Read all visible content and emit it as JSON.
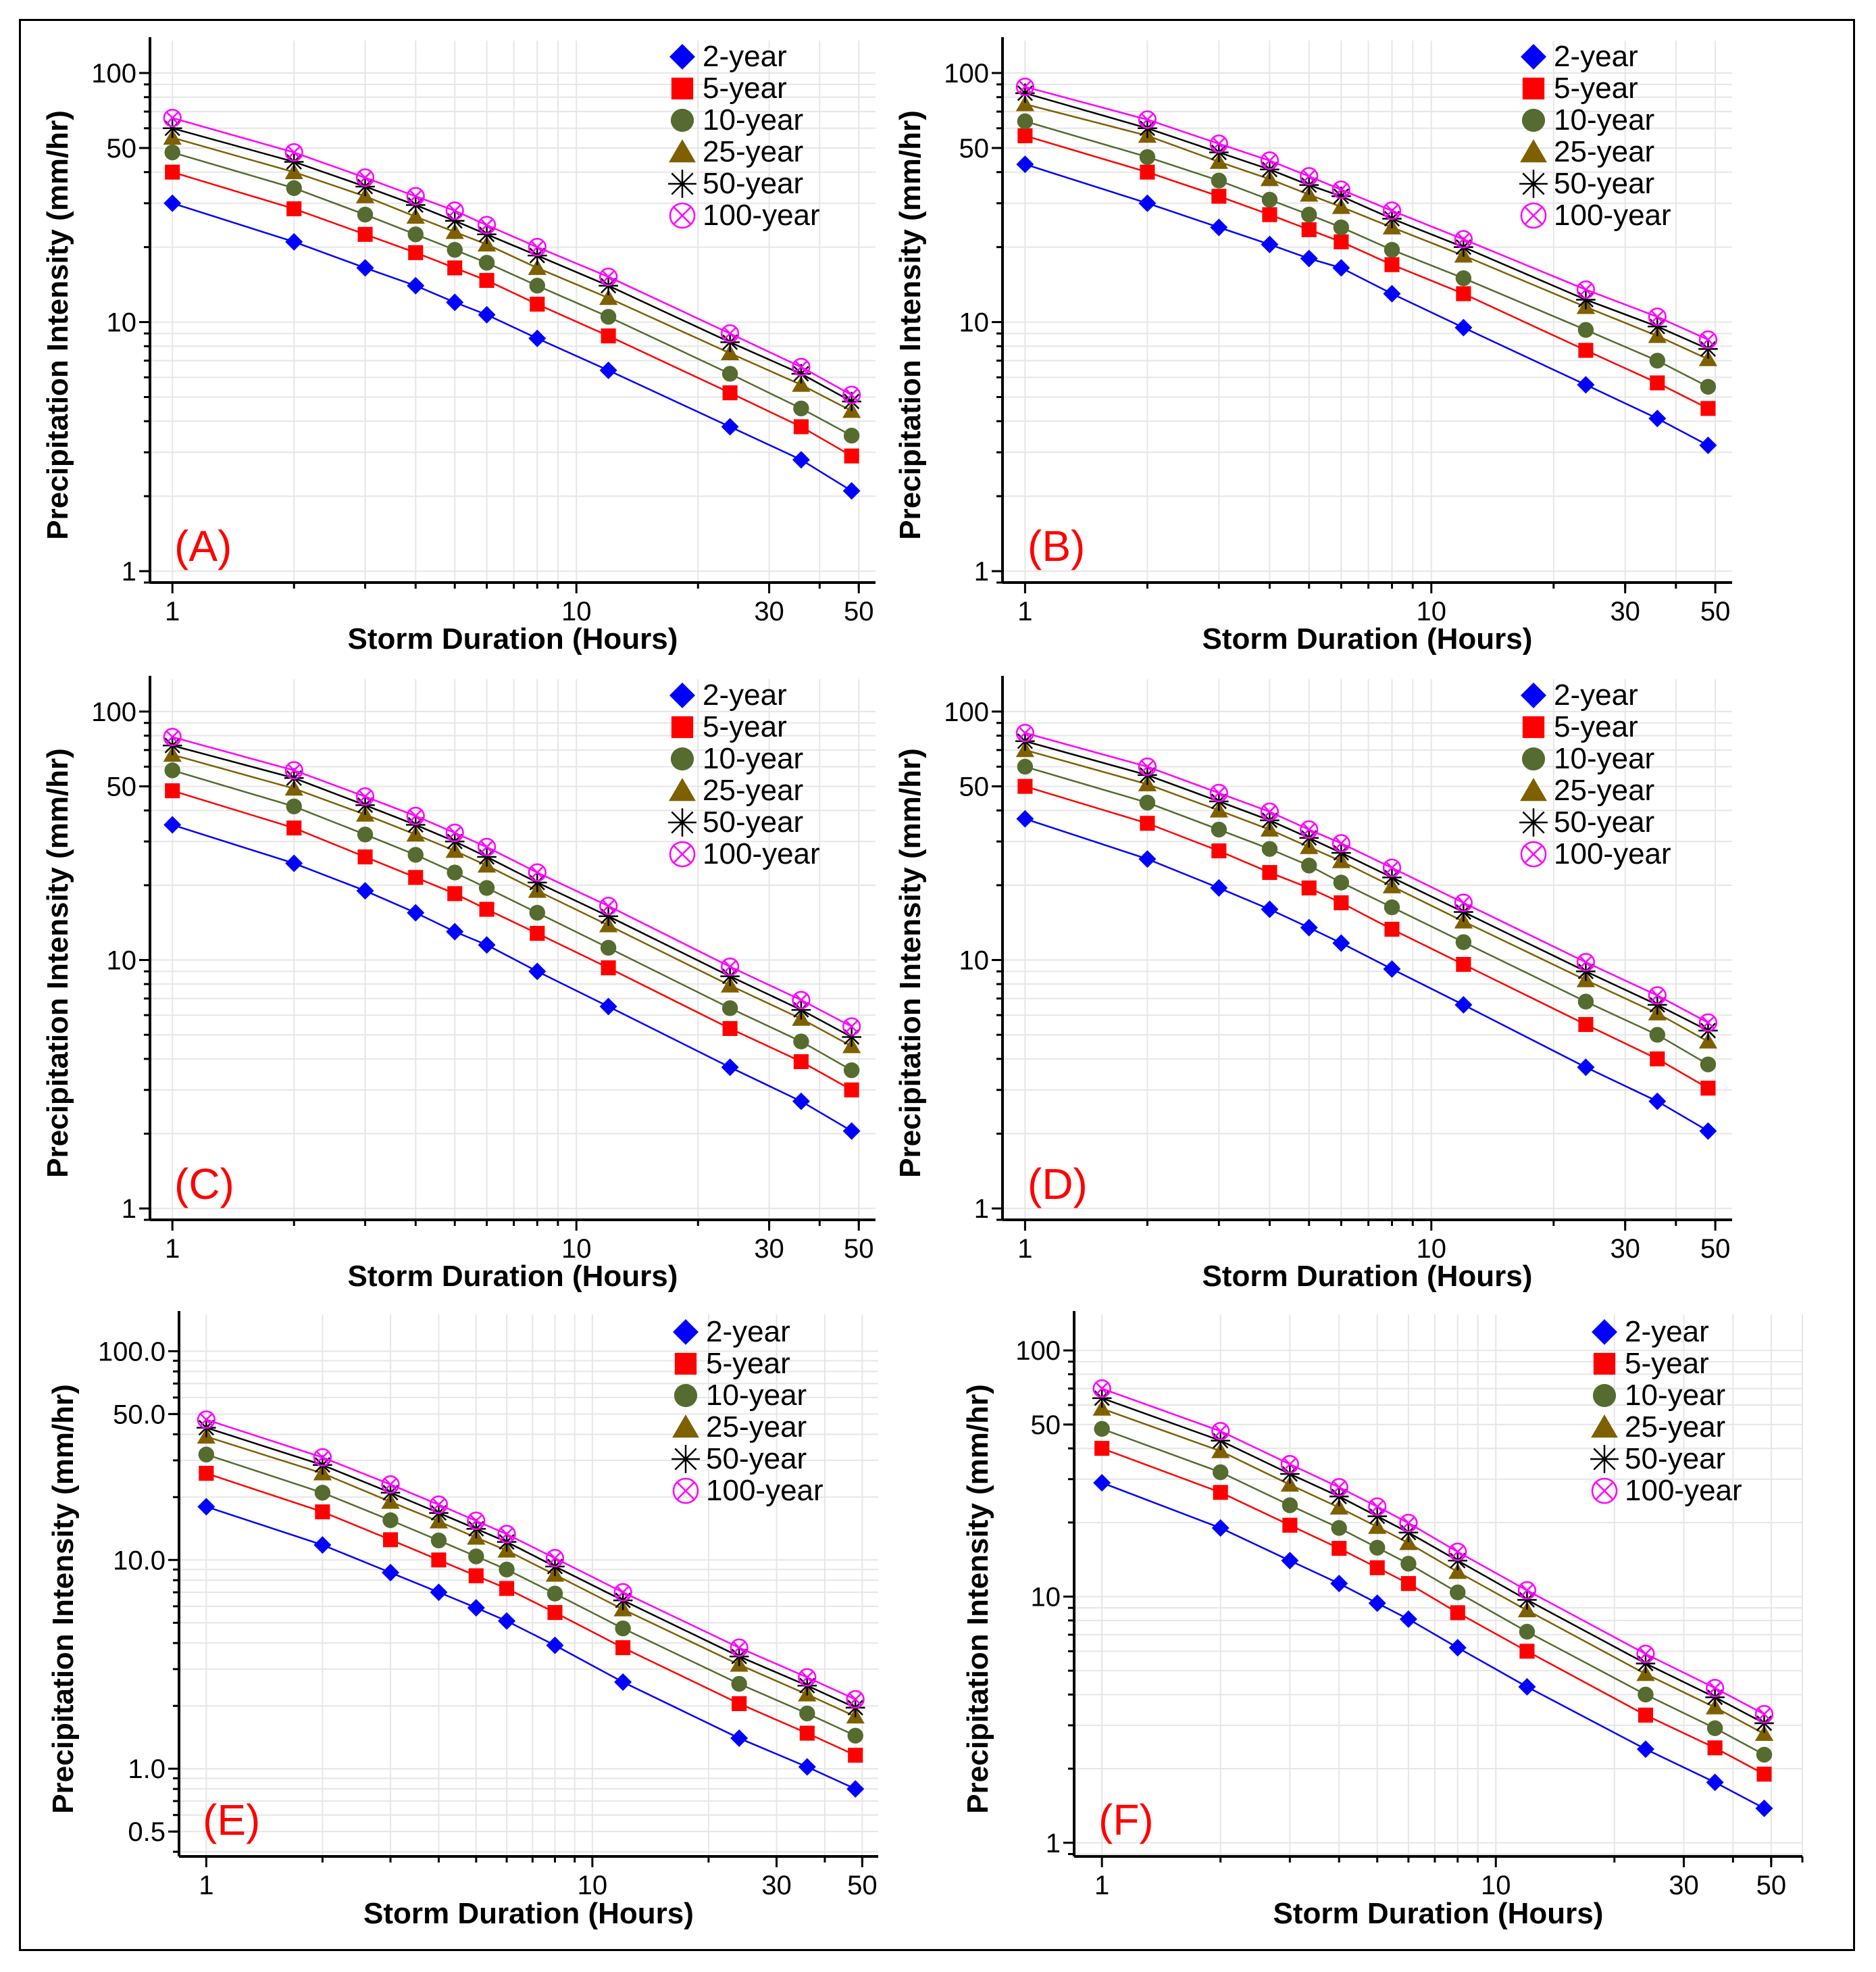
{
  "chart_data": [
    {
      "panel": "(A)",
      "type": "line",
      "xlabel": "Storm Duration (Hours)",
      "ylabel": "Precipitation Intensity (mm/hr)",
      "xscale": "log",
      "yscale": "log",
      "xlim": [
        0.88,
        55
      ],
      "ylim": [
        0.9,
        135
      ],
      "xticks": [
        {
          "v": 1,
          "t": "1"
        },
        {
          "v": 10,
          "t": "10"
        },
        {
          "v": 30,
          "t": "30"
        },
        {
          "v": 50,
          "t": "50"
        }
      ],
      "yticks": [
        {
          "v": 1,
          "t": "1"
        },
        {
          "v": 10,
          "t": "10"
        },
        {
          "v": 50,
          "t": "50"
        },
        {
          "v": 100,
          "t": "100"
        }
      ],
      "x": [
        1,
        2,
        3,
        4,
        5,
        6,
        8,
        12,
        24,
        36,
        48
      ],
      "series": [
        {
          "name": "2-year",
          "values": [
            30,
            21,
            16.5,
            14,
            12,
            10.7,
            8.6,
            6.4,
            3.8,
            2.8,
            2.1
          ]
        },
        {
          "name": "5-year",
          "values": [
            40,
            28.5,
            22.5,
            19,
            16.5,
            14.7,
            11.8,
            8.8,
            5.2,
            3.8,
            2.9
          ]
        },
        {
          "name": "10-year",
          "values": [
            48,
            34.5,
            27,
            22.5,
            19.5,
            17.3,
            14,
            10.5,
            6.2,
            4.5,
            3.5
          ]
        },
        {
          "name": "25-year",
          "values": [
            55,
            40,
            32,
            26.5,
            23,
            20.5,
            16.5,
            12.5,
            7.5,
            5.6,
            4.4
          ]
        },
        {
          "name": "50-year",
          "values": [
            60,
            44,
            35,
            29.5,
            25.5,
            22.5,
            18.5,
            14,
            8.3,
            6.2,
            4.8
          ]
        },
        {
          "name": "100-year",
          "values": [
            66,
            48,
            38,
            32,
            28,
            24.5,
            20,
            15.2,
            9,
            6.6,
            5.1
          ]
        }
      ]
    },
    {
      "panel": "(B)",
      "type": "line",
      "xlabel": "Storm Duration (Hours)",
      "ylabel": "Precipitation Intensity (mm/hr)",
      "xscale": "log",
      "yscale": "log",
      "xlim": [
        0.88,
        55
      ],
      "ylim": [
        0.9,
        135
      ],
      "xticks": [
        {
          "v": 1,
          "t": "1"
        },
        {
          "v": 10,
          "t": "10"
        },
        {
          "v": 30,
          "t": "30"
        },
        {
          "v": 50,
          "t": "50"
        }
      ],
      "yticks": [
        {
          "v": 1,
          "t": "1"
        },
        {
          "v": 10,
          "t": "10"
        },
        {
          "v": 50,
          "t": "50"
        },
        {
          "v": 100,
          "t": "100"
        }
      ],
      "x": [
        1,
        2,
        3,
        4,
        5,
        6,
        8,
        12,
        24,
        36,
        48
      ],
      "series": [
        {
          "name": "2-year",
          "values": [
            43,
            30,
            24,
            20.5,
            18,
            16.5,
            13,
            9.5,
            5.6,
            4.1,
            3.2
          ]
        },
        {
          "name": "5-year",
          "values": [
            56,
            40,
            32,
            27,
            23.5,
            21,
            17,
            13,
            7.7,
            5.7,
            4.5
          ]
        },
        {
          "name": "10-year",
          "values": [
            64,
            46,
            37,
            31,
            27,
            24,
            19.5,
            15,
            9.3,
            7,
            5.5
          ]
        },
        {
          "name": "25-year",
          "values": [
            75,
            56,
            44,
            37.5,
            32.5,
            29,
            24,
            18.5,
            11.5,
            8.8,
            7.1
          ]
        },
        {
          "name": "50-year",
          "values": [
            83,
            60,
            48,
            41,
            35.5,
            32,
            26,
            20,
            12.3,
            9.6,
            7.8
          ]
        },
        {
          "name": "100-year",
          "values": [
            88,
            65,
            52,
            44.5,
            38.5,
            34,
            28,
            21.5,
            13.5,
            10.5,
            8.5
          ]
        }
      ]
    },
    {
      "panel": "(C)",
      "type": "line",
      "xlabel": "Storm Duration (Hours)",
      "ylabel": "Precipitation Intensity (mm/hr)",
      "xscale": "log",
      "yscale": "log",
      "xlim": [
        0.88,
        55
      ],
      "ylim": [
        0.9,
        135
      ],
      "xticks": [
        {
          "v": 1,
          "t": "1"
        },
        {
          "v": 10,
          "t": "10"
        },
        {
          "v": 30,
          "t": "30"
        },
        {
          "v": 50,
          "t": "50"
        }
      ],
      "yticks": [
        {
          "v": 1,
          "t": "1"
        },
        {
          "v": 10,
          "t": "10"
        },
        {
          "v": 50,
          "t": "50"
        },
        {
          "v": 100,
          "t": "100"
        }
      ],
      "x": [
        1,
        2,
        3,
        4,
        5,
        6,
        8,
        12,
        24,
        36,
        48
      ],
      "series": [
        {
          "name": "2-year",
          "values": [
            35,
            24.5,
            19,
            15.5,
            13,
            11.5,
            9,
            6.5,
            3.7,
            2.7,
            2.05
          ]
        },
        {
          "name": "5-year",
          "values": [
            48,
            34,
            26,
            21.5,
            18.5,
            16,
            12.8,
            9.3,
            5.3,
            3.9,
            3
          ]
        },
        {
          "name": "10-year",
          "values": [
            58,
            41.5,
            32,
            26.5,
            22.5,
            19.5,
            15.5,
            11.2,
            6.4,
            4.7,
            3.6
          ]
        },
        {
          "name": "25-year",
          "values": [
            67,
            49,
            38.5,
            32,
            27.5,
            24,
            19,
            13.8,
            7.9,
            5.8,
            4.5
          ]
        },
        {
          "name": "50-year",
          "values": [
            73,
            54,
            42,
            35,
            30,
            26,
            20.5,
            15,
            8.6,
            6.3,
            4.9
          ]
        },
        {
          "name": "100-year",
          "values": [
            79,
            58,
            45.5,
            38,
            32.5,
            28.5,
            22.5,
            16.5,
            9.4,
            6.9,
            5.4
          ]
        }
      ]
    },
    {
      "panel": "(D)",
      "type": "line",
      "xlabel": "Storm Duration (Hours)",
      "ylabel": "Precipitation Intensity (mm/hr)",
      "xscale": "log",
      "yscale": "log",
      "xlim": [
        0.88,
        55
      ],
      "ylim": [
        0.9,
        135
      ],
      "xticks": [
        {
          "v": 1,
          "t": "1"
        },
        {
          "v": 10,
          "t": "10"
        },
        {
          "v": 30,
          "t": "30"
        },
        {
          "v": 50,
          "t": "50"
        }
      ],
      "yticks": [
        {
          "v": 1,
          "t": "1"
        },
        {
          "v": 10,
          "t": "10"
        },
        {
          "v": 50,
          "t": "50"
        },
        {
          "v": 100,
          "t": "100"
        }
      ],
      "x": [
        1,
        2,
        3,
        4,
        5,
        6,
        8,
        12,
        24,
        36,
        48
      ],
      "series": [
        {
          "name": "2-year",
          "values": [
            37,
            25.5,
            19.5,
            16,
            13.5,
            11.7,
            9.2,
            6.6,
            3.7,
            2.7,
            2.05
          ]
        },
        {
          "name": "5-year",
          "values": [
            50,
            35.5,
            27.5,
            22.5,
            19.5,
            17,
            13.3,
            9.6,
            5.5,
            4,
            3.05
          ]
        },
        {
          "name": "10-year",
          "values": [
            60,
            43,
            33.5,
            28,
            24,
            20.5,
            16.3,
            11.8,
            6.8,
            5,
            3.8
          ]
        },
        {
          "name": "25-year",
          "values": [
            70,
            51,
            40,
            33.5,
            28.5,
            25,
            19.8,
            14.3,
            8.3,
            6.1,
            4.7
          ]
        },
        {
          "name": "50-year",
          "values": [
            76,
            55.5,
            43.5,
            36.5,
            31,
            27,
            21.5,
            15.6,
            9,
            6.6,
            5.2
          ]
        },
        {
          "name": "100-year",
          "values": [
            82,
            60,
            47,
            39.5,
            33.5,
            29.5,
            23.5,
            17,
            9.8,
            7.2,
            5.6
          ]
        }
      ]
    },
    {
      "panel": "(E)",
      "type": "line",
      "xlabel": "Storm Duration (Hours)",
      "ylabel": "Precipitation Intensity (mm/hr)",
      "xscale": "log",
      "yscale": "log",
      "xlim": [
        0.85,
        55
      ],
      "ylim": [
        0.38,
        150
      ],
      "xticks": [
        {
          "v": 1,
          "t": "1"
        },
        {
          "v": 10,
          "t": "10"
        },
        {
          "v": 30,
          "t": "30"
        },
        {
          "v": 50,
          "t": "50"
        }
      ],
      "yticks": [
        {
          "v": 0.5,
          "t": "0.5"
        },
        {
          "v": 1,
          "t": "1.0"
        },
        {
          "v": 10,
          "t": "10.0"
        },
        {
          "v": 50,
          "t": "50.0"
        },
        {
          "v": 100,
          "t": "100.0"
        }
      ],
      "x": [
        1,
        2,
        3,
        4,
        5,
        6,
        8,
        12,
        24,
        36,
        48
      ],
      "series": [
        {
          "name": "2-year",
          "values": [
            18,
            11.8,
            8.7,
            7,
            5.9,
            5.1,
            3.9,
            2.6,
            1.4,
            1.02,
            0.8
          ]
        },
        {
          "name": "5-year",
          "values": [
            26,
            17,
            12.5,
            10,
            8.4,
            7.3,
            5.6,
            3.8,
            2.05,
            1.48,
            1.16
          ]
        },
        {
          "name": "10-year",
          "values": [
            32,
            21,
            15.5,
            12.4,
            10.4,
            9,
            6.9,
            4.7,
            2.55,
            1.84,
            1.44
          ]
        },
        {
          "name": "25-year",
          "values": [
            39,
            26,
            19,
            15.3,
            12.8,
            11.1,
            8.5,
            5.8,
            3.15,
            2.27,
            1.78
          ]
        },
        {
          "name": "50-year",
          "values": [
            43,
            28.5,
            21,
            16.8,
            14.1,
            12.2,
            9.3,
            6.4,
            3.45,
            2.5,
            1.96
          ]
        },
        {
          "name": "100-year",
          "values": [
            47,
            31,
            23,
            18.4,
            15.4,
            13.3,
            10.2,
            7,
            3.8,
            2.74,
            2.15
          ]
        }
      ]
    },
    {
      "panel": "(F)",
      "type": "line",
      "xlabel": "Storm Duration (Hours)",
      "ylabel": "Precipitation Intensity (mm/hr)",
      "xscale": "log",
      "yscale": "log",
      "xlim": [
        0.85,
        60
      ],
      "ylim": [
        0.88,
        140
      ],
      "xticks": [
        {
          "v": 1,
          "t": "1"
        },
        {
          "v": 10,
          "t": "10"
        },
        {
          "v": 30,
          "t": "30"
        },
        {
          "v": 50,
          "t": "50"
        }
      ],
      "yticks": [
        {
          "v": 1,
          "t": "1"
        },
        {
          "v": 10,
          "t": "10"
        },
        {
          "v": 50,
          "t": "50"
        },
        {
          "v": 100,
          "t": "100"
        }
      ],
      "x": [
        1,
        2,
        3,
        4,
        5,
        6,
        8,
        12,
        24,
        36,
        48
      ],
      "series": [
        {
          "name": "2-year",
          "values": [
            29,
            19,
            14,
            11.3,
            9.4,
            8.1,
            6.2,
            4.3,
            2.4,
            1.76,
            1.38
          ]
        },
        {
          "name": "5-year",
          "values": [
            40,
            26.5,
            19.5,
            15.7,
            13.1,
            11.3,
            8.6,
            6,
            3.3,
            2.43,
            1.9
          ]
        },
        {
          "name": "10-year",
          "values": [
            48,
            32,
            23.5,
            19,
            15.8,
            13.6,
            10.4,
            7.2,
            4,
            2.92,
            2.28
          ]
        },
        {
          "name": "25-year",
          "values": [
            58,
            39,
            28.5,
            23,
            19.2,
            16.5,
            12.6,
            8.8,
            4.85,
            3.55,
            2.77
          ]
        },
        {
          "name": "50-year",
          "values": [
            64,
            43,
            31.5,
            25.5,
            21.2,
            18.2,
            14,
            9.7,
            5.35,
            3.9,
            3.06
          ]
        },
        {
          "name": "100-year",
          "values": [
            70,
            47,
            34.5,
            27.8,
            23.2,
            19.9,
            15.2,
            10.6,
            5.85,
            4.25,
            3.33
          ]
        }
      ]
    }
  ],
  "series_colors": {
    "2-year": "#0000ff",
    "5-year": "#ff0000",
    "10-year": "#556b2f",
    "25-year": "#7f6000",
    "50-year": "#000000",
    "100-year": "#ff00ff"
  },
  "marker_icons": {
    "2-year": "diamond-icon",
    "5-year": "square-icon",
    "10-year": "circle-icon",
    "25-year": "triangle-icon",
    "50-year": "asterisk-icon",
    "100-year": "circled-x-icon"
  }
}
